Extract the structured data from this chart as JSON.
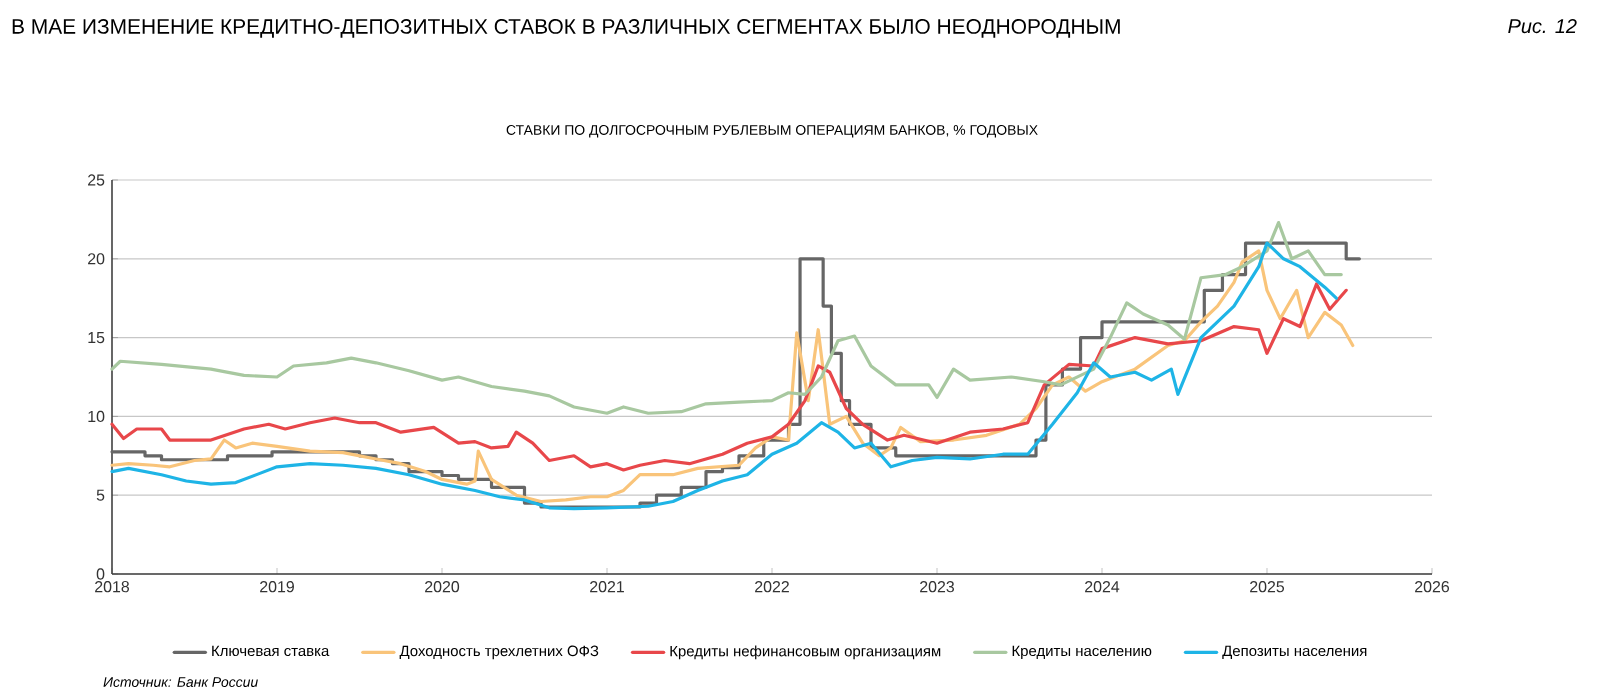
{
  "chart_data": {
    "type": "line",
    "title": "В МАЕ ИЗМЕНЕНИЕ КРЕДИТНО-ДЕПОЗИТНЫХ СТАВОК В РАЗЛИЧНЫХ СЕГМЕНТАХ БЫЛО НЕОДНОРОДНЫМ",
    "subtitle": "СТАВКИ ПО ДОЛГОСРОЧНЫМ РУБЛЕВЫМ ОПЕРАЦИЯМ БАНКОВ, % ГОДОВЫХ",
    "annotations": [
      "Рис. 12",
      "Источник: Банк России"
    ],
    "xlim": [
      2018,
      2026
    ],
    "xticks": [
      2018,
      2019,
      2020,
      2021,
      2022,
      2023,
      2024,
      2025,
      2026
    ],
    "ylim": [
      0,
      25
    ],
    "yticks": [
      0,
      5,
      10,
      15,
      20,
      25
    ],
    "grid": "y",
    "legend": "bottom",
    "series": [
      {
        "name": "Ключевая ставка",
        "type": "step",
        "color": "#666666",
        "x": [
          2018,
          2018.2,
          2018.3,
          2018.7,
          2018.97,
          2019.5,
          2019.6,
          2019.7,
          2019.8,
          2020.0,
          2020.1,
          2020.3,
          2020.5,
          2020.6,
          2021.2,
          2021.3,
          2021.45,
          2021.6,
          2021.7,
          2021.8,
          2021.95,
          2022.1,
          2022.17,
          2022.31,
          2022.36,
          2022.42,
          2022.47,
          2022.6,
          2022.75,
          2023.6,
          2023.66,
          2023.76,
          2023.87,
          2024.0,
          2024.62,
          2024.73,
          2024.87,
          2025.48,
          2025.56
        ],
        "values": [
          7.75,
          7.5,
          7.25,
          7.5,
          7.75,
          7.5,
          7.25,
          7,
          6.5,
          6.25,
          6,
          5.5,
          4.5,
          4.25,
          4.5,
          5,
          5.5,
          6.5,
          6.75,
          7.5,
          8.5,
          9.5,
          20,
          17,
          14,
          11,
          9.5,
          8,
          7.5,
          8.5,
          12,
          13,
          15,
          16,
          18,
          19,
          21,
          20,
          20
        ]
      },
      {
        "name": "Доходность трехлетних ОФЗ",
        "color": "#f9c47a",
        "x": [
          2018,
          2018.1,
          2018.25,
          2018.35,
          2018.5,
          2018.6,
          2018.68,
          2018.75,
          2018.85,
          2019.0,
          2019.2,
          2019.4,
          2019.6,
          2019.75,
          2019.9,
          2020.0,
          2020.15,
          2020.2,
          2020.22,
          2020.3,
          2020.45,
          2020.6,
          2020.75,
          2020.9,
          2021.0,
          2021.1,
          2021.2,
          2021.4,
          2021.55,
          2021.8,
          2021.9,
          2022.0,
          2022.1,
          2022.15,
          2022.22,
          2022.28,
          2022.35,
          2022.45,
          2022.55,
          2022.65,
          2022.72,
          2022.78,
          2022.9,
          2023.1,
          2023.3,
          2023.5,
          2023.6,
          2023.7,
          2023.8,
          2023.9,
          2024.0,
          2024.2,
          2024.4,
          2024.5,
          2024.6,
          2024.7,
          2024.8,
          2024.85,
          2024.95,
          2025.0,
          2025.08,
          2025.18,
          2025.25,
          2025.35,
          2025.45,
          2025.52
        ],
        "values": [
          6.9,
          7.0,
          6.9,
          6.8,
          7.2,
          7.3,
          8.5,
          8.0,
          8.3,
          8.1,
          7.8,
          7.7,
          7.3,
          7.0,
          6.5,
          6.0,
          5.7,
          5.9,
          7.8,
          6.0,
          5.0,
          4.6,
          4.7,
          4.9,
          4.9,
          5.3,
          6.3,
          6.3,
          6.7,
          6.9,
          8.0,
          8.7,
          8.5,
          15.3,
          11.0,
          15.5,
          9.5,
          10.0,
          8.3,
          7.5,
          8.0,
          9.3,
          8.4,
          8.5,
          8.8,
          9.5,
          10.5,
          12.0,
          12.5,
          11.6,
          12.2,
          13.0,
          14.5,
          14.8,
          16.0,
          17.0,
          18.5,
          19.8,
          20.5,
          18.0,
          16.2,
          18.0,
          15.0,
          16.6,
          15.8,
          14.5
        ]
      },
      {
        "name": "Кредиты нефинансовым организациям",
        "color": "#e8474a",
        "x": [
          2018,
          2018.07,
          2018.15,
          2018.3,
          2018.35,
          2018.6,
          2018.8,
          2018.95,
          2019.05,
          2019.2,
          2019.35,
          2019.5,
          2019.6,
          2019.75,
          2019.95,
          2020.1,
          2020.2,
          2020.3,
          2020.4,
          2020.45,
          2020.55,
          2020.65,
          2020.8,
          2020.9,
          2021.0,
          2021.1,
          2021.2,
          2021.35,
          2021.5,
          2021.7,
          2021.85,
          2022.0,
          2022.1,
          2022.2,
          2022.28,
          2022.35,
          2022.45,
          2022.55,
          2022.7,
          2022.8,
          2023.0,
          2023.2,
          2023.4,
          2023.55,
          2023.65,
          2023.8,
          2023.95,
          2024.0,
          2024.2,
          2024.4,
          2024.6,
          2024.8,
          2024.95,
          2025.0,
          2025.1,
          2025.2,
          2025.3,
          2025.38,
          2025.48
        ],
        "values": [
          9.5,
          8.6,
          9.2,
          9.2,
          8.5,
          8.5,
          9.2,
          9.5,
          9.2,
          9.6,
          9.9,
          9.6,
          9.6,
          9.0,
          9.3,
          8.3,
          8.4,
          8.0,
          8.1,
          9.0,
          8.3,
          7.2,
          7.5,
          6.8,
          7.0,
          6.6,
          6.9,
          7.2,
          7.0,
          7.6,
          8.3,
          8.7,
          9.5,
          11.0,
          13.2,
          12.8,
          10.5,
          9.5,
          8.5,
          8.8,
          8.3,
          9.0,
          9.2,
          9.6,
          12.0,
          13.3,
          13.2,
          14.3,
          15.0,
          14.6,
          14.8,
          15.7,
          15.5,
          14.0,
          16.2,
          15.7,
          18.4,
          16.8,
          18.0
        ]
      },
      {
        "name": "Кредиты населению",
        "color": "#a8c8a0",
        "x": [
          2018,
          2018.05,
          2018.3,
          2018.6,
          2018.8,
          2019.0,
          2019.1,
          2019.3,
          2019.45,
          2019.6,
          2019.8,
          2020.0,
          2020.1,
          2020.3,
          2020.5,
          2020.65,
          2020.8,
          2021.0,
          2021.1,
          2021.25,
          2021.45,
          2021.6,
          2021.8,
          2022.0,
          2022.1,
          2022.2,
          2022.3,
          2022.4,
          2022.5,
          2022.6,
          2022.75,
          2022.95,
          2023.0,
          2023.1,
          2023.2,
          2023.45,
          2023.65,
          2023.75,
          2023.95,
          2024.05,
          2024.15,
          2024.25,
          2024.4,
          2024.5,
          2024.6,
          2024.75,
          2024.85,
          2025.0,
          2025.07,
          2025.15,
          2025.25,
          2025.35,
          2025.45
        ],
        "values": [
          13.0,
          13.5,
          13.3,
          13.0,
          12.6,
          12.5,
          13.2,
          13.4,
          13.7,
          13.4,
          12.9,
          12.3,
          12.5,
          11.9,
          11.6,
          11.3,
          10.6,
          10.2,
          10.6,
          10.2,
          10.3,
          10.8,
          10.9,
          11.0,
          11.5,
          11.4,
          12.5,
          14.8,
          15.1,
          13.2,
          12.0,
          12.0,
          11.2,
          13.0,
          12.3,
          12.5,
          12.2,
          12.0,
          13.0,
          15.0,
          17.2,
          16.5,
          15.8,
          14.9,
          18.8,
          19.0,
          19.5,
          20.5,
          22.3,
          20.0,
          20.5,
          19.0,
          19.0
        ]
      },
      {
        "name": "Депозиты населения",
        "color": "#1eb4e6",
        "x": [
          2018,
          2018.1,
          2018.3,
          2018.45,
          2018.6,
          2018.75,
          2018.9,
          2019.0,
          2019.2,
          2019.4,
          2019.6,
          2019.8,
          2020.0,
          2020.2,
          2020.35,
          2020.5,
          2020.65,
          2020.8,
          2021.0,
          2021.25,
          2021.4,
          2021.55,
          2021.7,
          2021.85,
          2022.0,
          2022.15,
          2022.3,
          2022.4,
          2022.5,
          2022.6,
          2022.72,
          2022.85,
          2023.0,
          2023.2,
          2023.4,
          2023.55,
          2023.7,
          2023.85,
          2023.95,
          2024.05,
          2024.2,
          2024.3,
          2024.42,
          2024.46,
          2024.6,
          2024.8,
          2024.95,
          2025.0,
          2025.1,
          2025.2,
          2025.35,
          2025.42
        ],
        "values": [
          6.5,
          6.7,
          6.3,
          5.9,
          5.7,
          5.8,
          6.4,
          6.8,
          7.0,
          6.9,
          6.7,
          6.3,
          5.7,
          5.3,
          4.9,
          4.7,
          4.2,
          4.15,
          4.2,
          4.3,
          4.6,
          5.3,
          5.9,
          6.3,
          7.6,
          8.3,
          9.6,
          9.0,
          8.0,
          8.3,
          6.8,
          7.2,
          7.4,
          7.3,
          7.6,
          7.6,
          9.5,
          11.5,
          13.4,
          12.5,
          12.8,
          12.3,
          13.0,
          11.4,
          15.0,
          17.0,
          19.5,
          21.0,
          20.0,
          19.5,
          18.2,
          17.5
        ]
      }
    ]
  }
}
